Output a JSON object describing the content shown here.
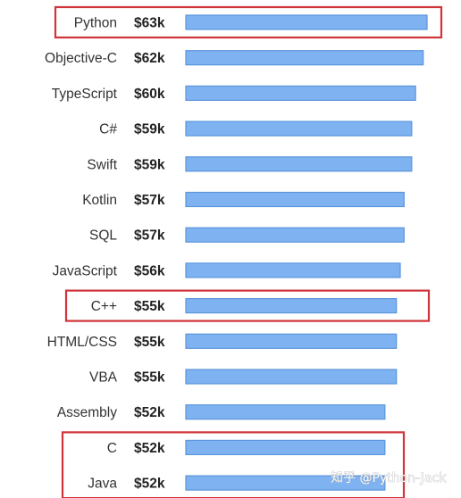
{
  "chart_data": {
    "type": "bar",
    "orientation": "horizontal",
    "title": "",
    "xlabel": "",
    "ylabel": "",
    "categories": [
      "Python",
      "Objective-C",
      "TypeScript",
      "C#",
      "Swift",
      "Kotlin",
      "SQL",
      "JavaScript",
      "C++",
      "HTML/CSS",
      "VBA",
      "Assembly",
      "C",
      "Java"
    ],
    "values": [
      63,
      62,
      60,
      59,
      59,
      57,
      57,
      56,
      55,
      55,
      55,
      52,
      52,
      52
    ],
    "value_labels": [
      "$63k",
      "$62k",
      "$60k",
      "$59k",
      "$59k",
      "$57k",
      "$57k",
      "$56k",
      "$55k",
      "$55k",
      "$55k",
      "$52k",
      "$52k",
      "$52k"
    ],
    "bar_color": "#7fb2f0",
    "bar_edge_color": "#5b95dc",
    "grid": false,
    "legend": "none",
    "highlighted": [
      [
        "Python"
      ],
      [
        "C++"
      ],
      [
        "C",
        "Java"
      ]
    ],
    "highlight_color": "#d0343a"
  },
  "watermark": "知乎 @Python-Jack"
}
